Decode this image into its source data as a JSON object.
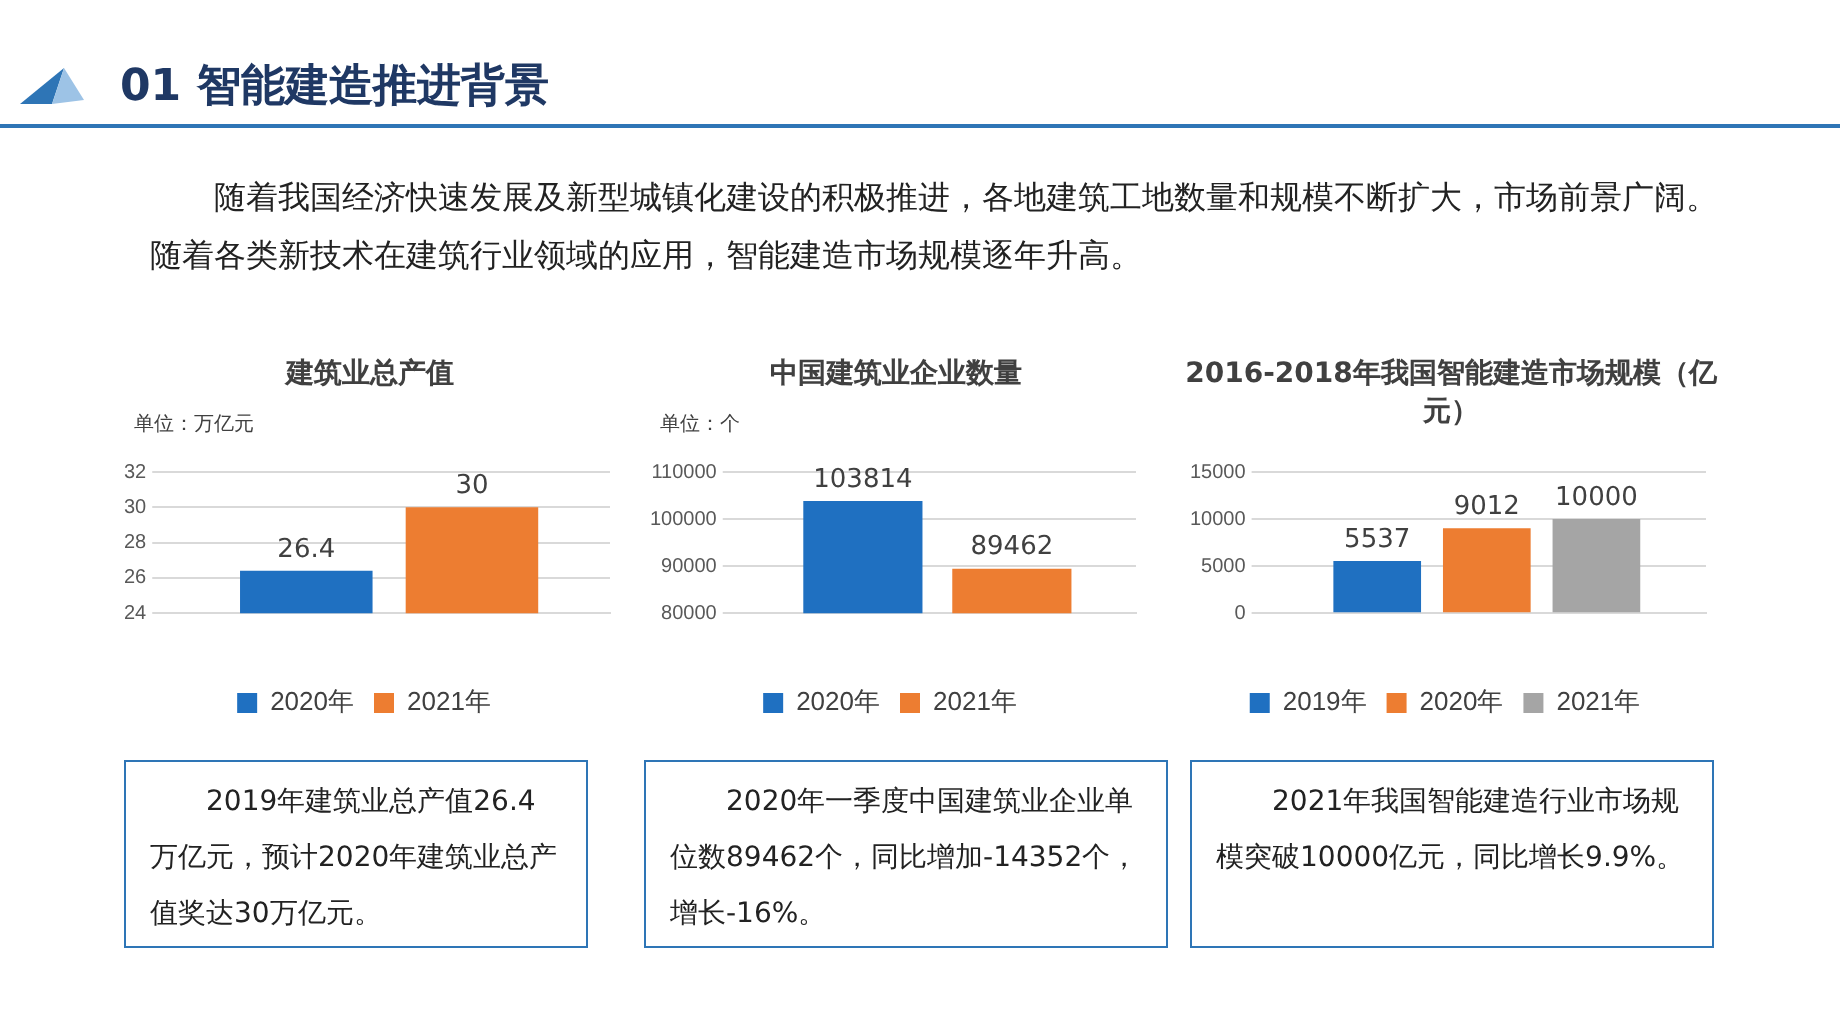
{
  "chart_data": [
    {
      "type": "other",
      "title": "01 智能建造推进背景",
      "annotations": [
        "随着我国经济快速发展及新型城镇化建设的积极推进，各地建筑工地数量和规模不断扩大，市场前景广阔。随着各类新技术在建筑行业领域的应用，智能建造市场规模逐年升高。"
      ]
    },
    {
      "type": "bar",
      "title": "建筑业总产值",
      "ylabel": "单位：万亿元",
      "categories": [
        null
      ],
      "series": [
        {
          "name": "2020年",
          "color": "#1f70c1",
          "values": [
            26.4
          ]
        },
        {
          "name": "2021年",
          "color": "#ed7d31",
          "values": [
            30
          ]
        }
      ],
      "ylim": [
        24,
        32
      ],
      "yticks": [
        24,
        26,
        28,
        30,
        32
      ],
      "grid": "y",
      "legend": "bottom",
      "data_labels": true,
      "annotations": [
        "2019年建筑业总产值26.4万亿元，预计2020年建筑业总产值奖达30万亿元。"
      ]
    },
    {
      "type": "bar",
      "title": "中国建筑业企业数量",
      "ylabel": "单位：个",
      "categories": [
        null
      ],
      "series": [
        {
          "name": "2020年",
          "color": "#1f70c1",
          "values": [
            103814
          ]
        },
        {
          "name": "2021年",
          "color": "#ed7d31",
          "values": [
            89462
          ]
        }
      ],
      "ylim": [
        80000,
        110000
      ],
      "yticks": [
        80000,
        90000,
        100000,
        110000
      ],
      "grid": "y",
      "legend": "bottom",
      "data_labels": true,
      "annotations": [
        "2020年一季度中国建筑业企业单位数89462个，同比增加-14352个，增长-16%。"
      ]
    },
    {
      "type": "bar",
      "title": "2016-2018年我国智能建造市场规模（亿元）",
      "categories": [
        null
      ],
      "series": [
        {
          "name": "2019年",
          "color": "#1f70c1",
          "values": [
            5537
          ]
        },
        {
          "name": "2020年",
          "color": "#ed7d31",
          "values": [
            9012
          ]
        },
        {
          "name": "2021年",
          "color": "#a5a5a5",
          "values": [
            10000
          ]
        }
      ],
      "ylim": [
        0,
        15000
      ],
      "yticks": [
        0,
        5000,
        10000,
        15000
      ],
      "grid": "y",
      "legend": "bottom",
      "data_labels": true,
      "annotations": [
        "2021年我国智能建造行业市场规模突破10000亿元，同比增长9.9%。"
      ]
    }
  ]
}
